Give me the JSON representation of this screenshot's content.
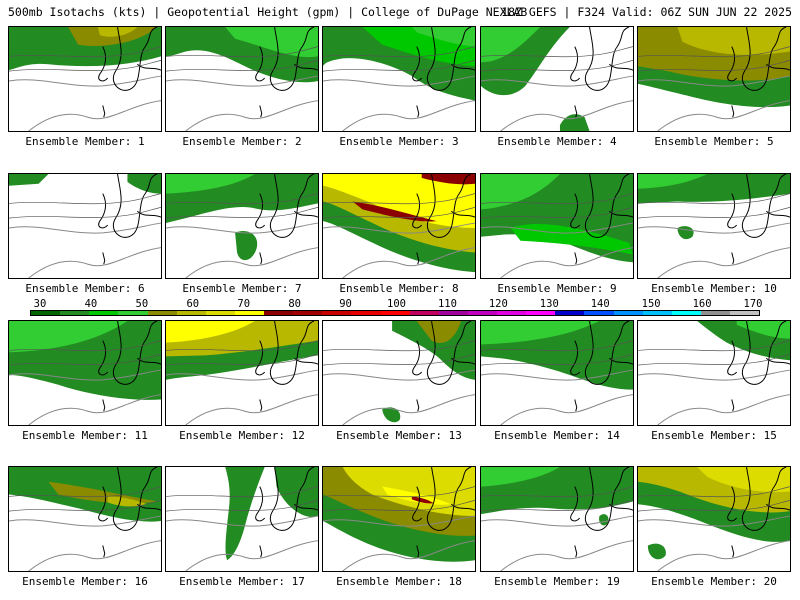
{
  "header": {
    "left": "500mb Isotachs (kts) | Geopotential Height (gpm) | College of DuPage NEXLAB",
    "right": "18Z GEFS | F324 Valid: 06Z SUN JUN 22 2025"
  },
  "members": [
    "Ensemble Member: 1",
    "Ensemble Member: 2",
    "Ensemble Member: 3",
    "Ensemble Member: 4",
    "Ensemble Member: 5",
    "Ensemble Member: 6",
    "Ensemble Member: 7",
    "Ensemble Member: 8",
    "Ensemble Member: 9",
    "Ensemble Member: 10",
    "Ensemble Member: 11",
    "Ensemble Member: 12",
    "Ensemble Member: 13",
    "Ensemble Member: 14",
    "Ensemble Member: 15",
    "Ensemble Member: 16",
    "Ensemble Member: 17",
    "Ensemble Member: 18",
    "Ensemble Member: 19",
    "Ensemble Member: 20"
  ],
  "colorbar": {
    "ticks": [
      "30",
      "40",
      "50",
      "60",
      "70",
      "80",
      "90",
      "100",
      "110",
      "120",
      "130",
      "140",
      "150",
      "160",
      "170"
    ],
    "colors": [
      "#006400",
      "#228b22",
      "#00c800",
      "#32cd32",
      "#8b8b00",
      "#b8b800",
      "#dcdc00",
      "#ffff00",
      "#8b0000",
      "#a00000",
      "#c80000",
      "#e60000",
      "#ff0000",
      "#c00060",
      "#a000a0",
      "#c000c0",
      "#e000e0",
      "#ff00ff",
      "#0000c8",
      "#0050ff",
      "#0090ff",
      "#00c0ff",
      "#00ffff",
      "#909090",
      "#c0c0c0"
    ]
  }
}
